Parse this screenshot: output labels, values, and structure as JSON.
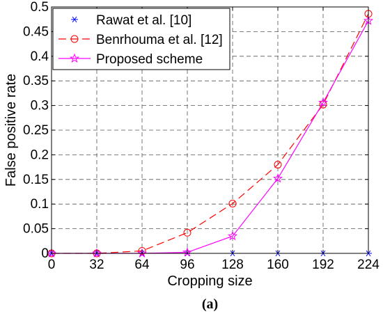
{
  "chart_data": {
    "type": "line",
    "xlabel": "Cropping size",
    "ylabel": "False positive rate",
    "caption": "(a)",
    "x": [
      0,
      32,
      64,
      96,
      128,
      160,
      192,
      224
    ],
    "xlim": [
      0,
      224
    ],
    "ylim": [
      0,
      0.5
    ],
    "xticks": [
      "0",
      "32",
      "64",
      "96",
      "128",
      "160",
      "192",
      "224"
    ],
    "yticks": [
      "0",
      "0.05",
      "0.1",
      "0.15",
      "0.2",
      "0.25",
      "0.3",
      "0.35",
      "0.4",
      "0.45",
      "0.5"
    ],
    "grid": true,
    "legend_position": "top-left",
    "series": [
      {
        "name": "Rawat et al. [10]",
        "values": [
          0,
          0,
          0,
          0,
          0,
          0,
          0,
          0
        ],
        "color": "#0000ff",
        "marker": "asterisk",
        "line": "none"
      },
      {
        "name": "Benrhouma et al. [12]",
        "values": [
          0,
          0,
          0.005,
          0.042,
          0.101,
          0.18,
          0.302,
          0.486
        ],
        "color": "#ff0000",
        "marker": "circle",
        "line": "dashed"
      },
      {
        "name": "Proposed scheme",
        "values": [
          0,
          0,
          0,
          0.002,
          0.035,
          0.152,
          0.306,
          0.472
        ],
        "color": "#ff00ff",
        "marker": "star",
        "line": "solid"
      }
    ]
  }
}
